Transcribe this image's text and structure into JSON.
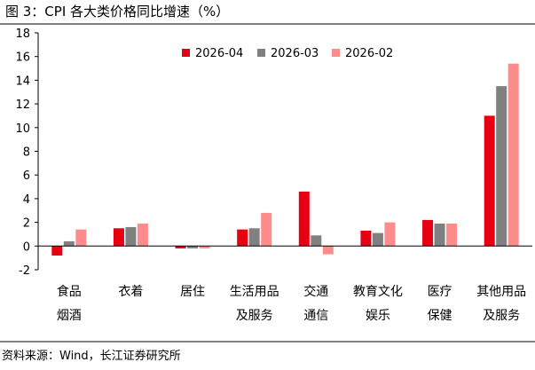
{
  "page": {
    "title": "图 3：CPI 各大类价格同比增速（%）",
    "source": "资料来源：Wind，长江证券研究所"
  },
  "chart_data": {
    "type": "bar",
    "title": "CPI 各大类价格同比增速（%）",
    "xlabel": "",
    "ylabel": "",
    "ylim": [
      -2,
      18
    ],
    "yticks": [
      -2,
      0,
      2,
      4,
      6,
      8,
      10,
      12,
      14,
      16,
      18
    ],
    "grid": false,
    "legend_position": "top-right",
    "categories": [
      [
        "食品",
        "烟酒"
      ],
      [
        "衣着"
      ],
      [
        "居住"
      ],
      [
        "生活用品",
        "及服务"
      ],
      [
        "交通",
        "通信"
      ],
      [
        "教育文化",
        "娱乐"
      ],
      [
        "医疗",
        "保健"
      ],
      [
        "其他用品",
        "及服务"
      ]
    ],
    "series": [
      {
        "name": "2026-04",
        "color": "#e60012",
        "values": [
          -0.8,
          1.5,
          -0.2,
          1.4,
          4.6,
          1.3,
          2.2,
          11.0
        ]
      },
      {
        "name": "2026-03",
        "color": "#808080",
        "values": [
          0.4,
          1.6,
          -0.2,
          1.5,
          0.9,
          1.1,
          1.9,
          13.5
        ]
      },
      {
        "name": "2026-02",
        "color": "#ff8c8c",
        "values": [
          1.4,
          1.9,
          -0.2,
          2.8,
          -0.7,
          2.0,
          1.9,
          15.4
        ]
      }
    ]
  }
}
